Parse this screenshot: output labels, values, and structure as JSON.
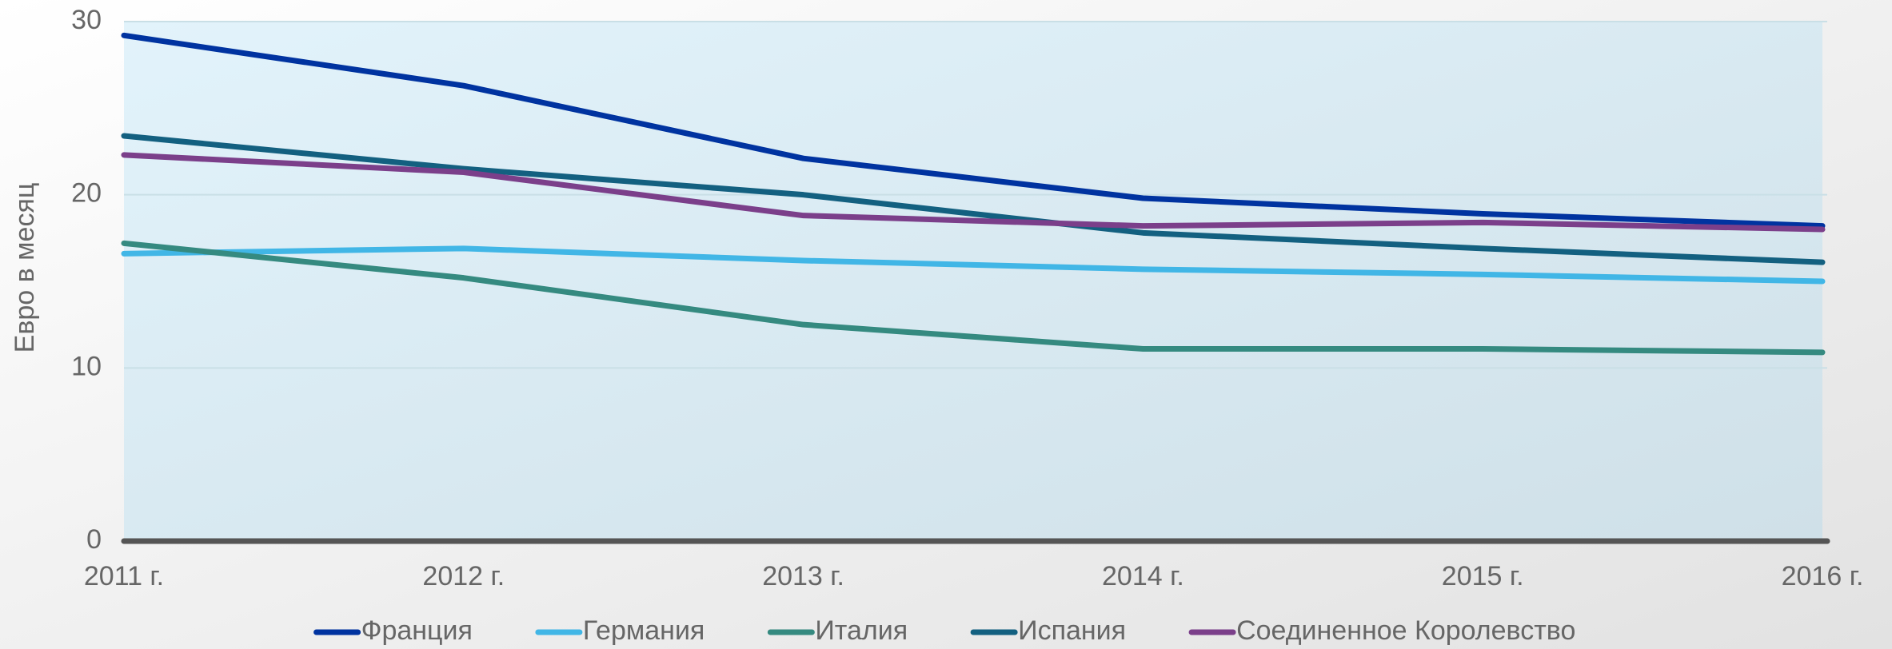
{
  "chart_data": {
    "type": "line",
    "y_label": "Евро в месяц",
    "categories": [
      "2011 г.",
      "2012 г.",
      "2013 г.",
      "2014 г.",
      "2015 г.",
      "2016 г."
    ],
    "series": [
      {
        "name": "Франция",
        "color": "#0033a0",
        "values": [
          29.2,
          26.3,
          22.1,
          19.8,
          18.9,
          18.2
        ]
      },
      {
        "name": "Германия",
        "color": "#41b6e6",
        "values": [
          16.6,
          16.9,
          16.2,
          15.7,
          15.4,
          15.0
        ]
      },
      {
        "name": "Италия",
        "color": "#358a80",
        "values": [
          17.2,
          15.2,
          12.5,
          11.1,
          11.1,
          10.9
        ]
      },
      {
        "name": "Испания",
        "color": "#136080",
        "values": [
          23.4,
          21.5,
          20.0,
          17.8,
          16.9,
          16.1
        ]
      },
      {
        "name": "Соединенное Королевство",
        "color": "#7b3f8a",
        "values": [
          22.3,
          21.3,
          18.8,
          18.2,
          18.4,
          18.0
        ]
      }
    ],
    "ylim": [
      0,
      30
    ],
    "yticks": [
      0,
      10,
      20,
      30
    ],
    "grid": true
  }
}
